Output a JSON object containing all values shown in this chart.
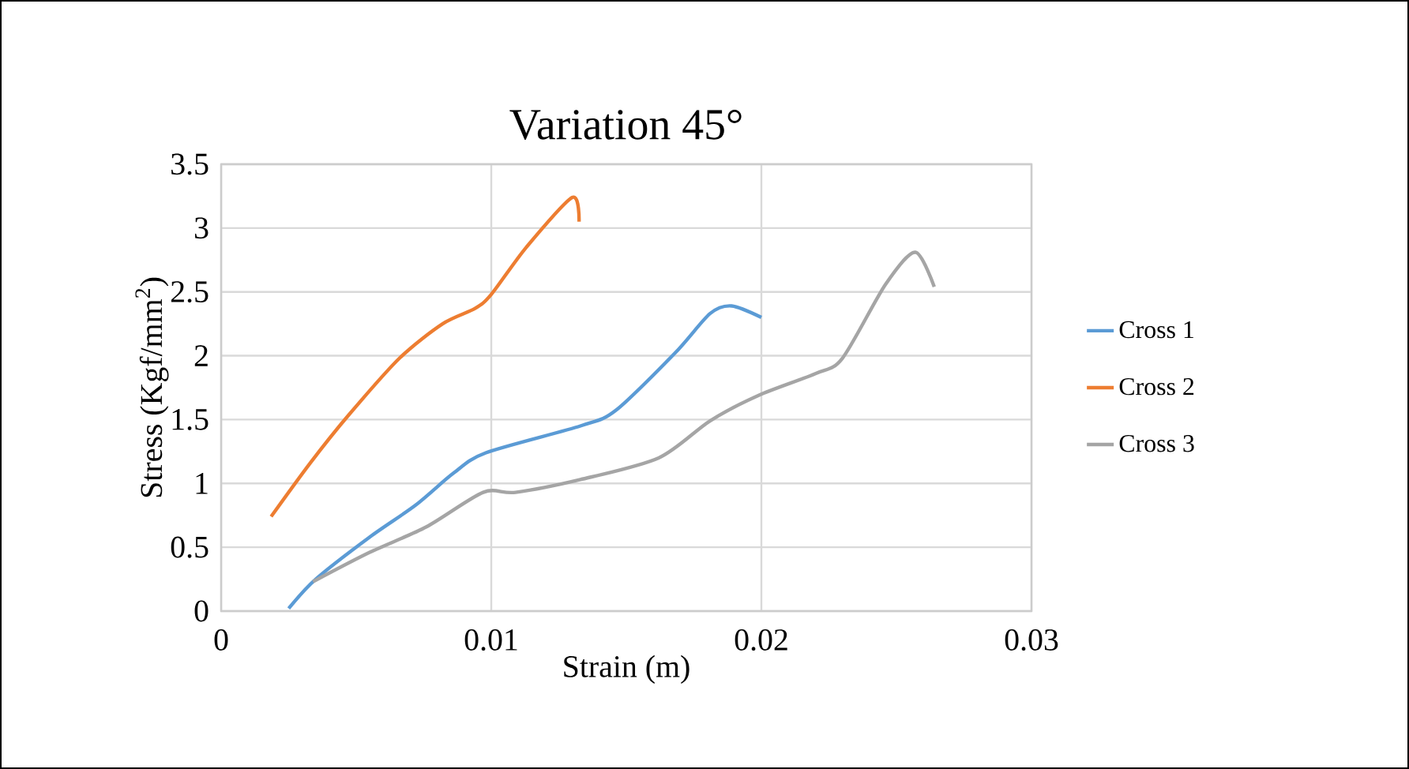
{
  "chart_data": {
    "type": "line",
    "title": "Variation 45°",
    "xlabel": "Strain (m)",
    "ylabel": "Stress (Kgf/mm$^{2}$)",
    "xlim": [
      0,
      0.03
    ],
    "xticks": [
      0,
      0.01,
      0.02,
      0.03
    ],
    "ylim": [
      0,
      3.5
    ],
    "yticks": [
      0,
      0.5,
      1,
      1.5,
      2,
      2.5,
      3,
      3.5
    ],
    "grid": true,
    "legend": "right",
    "marker": "none",
    "line_style": "solid",
    "series": [
      {
        "name": "Cross 1",
        "color": "#5b9bd5",
        "x": [
          0.0025,
          0.0035,
          0.0055,
          0.0072,
          0.0086,
          0.0098,
          0.0133,
          0.0146,
          0.0168,
          0.0181,
          0.0189,
          0.02
        ],
        "values": [
          0.02,
          0.25,
          0.58,
          0.83,
          1.08,
          1.24,
          1.45,
          1.57,
          2.02,
          2.33,
          2.39,
          2.3
        ]
      },
      {
        "name": "Cross 2",
        "color": "#ed7d31",
        "x": [
          0.00185,
          0.0033,
          0.0047,
          0.0066,
          0.0082,
          0.0094,
          0.01,
          0.0113,
          0.013,
          0.01325
        ],
        "values": [
          0.74,
          1.16,
          1.53,
          1.98,
          2.25,
          2.37,
          2.48,
          2.85,
          3.24,
          3.05
        ]
      },
      {
        "name": "Cross 3",
        "color": "#a5a5a5",
        "x": [
          0.0034,
          0.0055,
          0.0076,
          0.0097,
          0.0109,
          0.0133,
          0.0162,
          0.0181,
          0.0199,
          0.022,
          0.023,
          0.0246,
          0.0257,
          0.0264
        ],
        "values": [
          0.23,
          0.46,
          0.66,
          0.93,
          0.93,
          1.03,
          1.2,
          1.49,
          1.69,
          1.86,
          1.98,
          2.56,
          2.81,
          2.54
        ]
      }
    ]
  }
}
